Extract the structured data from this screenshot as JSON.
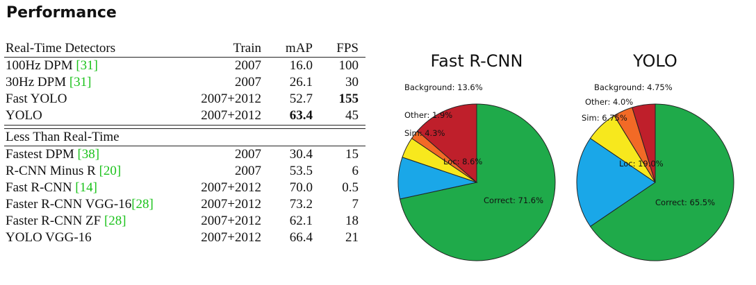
{
  "page": {
    "title": "Performance"
  },
  "table": {
    "headers": {
      "name": "Real-Time Detectors",
      "train": "Train",
      "map": "mAP",
      "fps": "FPS"
    },
    "section_2_title": "Less Than Real-Time",
    "colors": {
      "ref": "#1bc21b"
    },
    "real_time": [
      {
        "name": "100Hz DPM ",
        "ref": "[31]",
        "train": "2007",
        "map": "16.0",
        "fps": "100"
      },
      {
        "name": "30Hz DPM ",
        "ref": "[31]",
        "train": "2007",
        "map": "26.1",
        "fps": "30"
      },
      {
        "name": "Fast YOLO",
        "ref": "",
        "train": "2007+2012",
        "map": "52.7",
        "fps": "155",
        "fps_bold": true
      },
      {
        "name": "YOLO",
        "ref": "",
        "train": "2007+2012",
        "map": "63.4",
        "fps": "45",
        "map_bold": true
      }
    ],
    "less_than_real_time": [
      {
        "name": "Fastest DPM ",
        "ref": "[38]",
        "train": "2007",
        "map": "30.4",
        "fps": "15"
      },
      {
        "name": "R-CNN Minus R ",
        "ref": "[20]",
        "train": "2007",
        "map": "53.5",
        "fps": "6"
      },
      {
        "name": "Fast R-CNN ",
        "ref": "[14]",
        "train": "2007+2012",
        "map": "70.0",
        "fps": "0.5"
      },
      {
        "name": "Faster R-CNN VGG-16",
        "ref": "[28]",
        "train": "2007+2012",
        "map": "73.2",
        "fps": "7"
      },
      {
        "name": "Faster R-CNN ZF ",
        "ref": "[28]",
        "train": "2007+2012",
        "map": "62.1",
        "fps": "18"
      },
      {
        "name": "YOLO VGG-16",
        "ref": "",
        "train": "2007+2012",
        "map": "66.4",
        "fps": "21"
      }
    ]
  },
  "chart_data": [
    {
      "type": "pie",
      "title": "Fast R-CNN",
      "slices": [
        {
          "label": "Correct: 71.6%",
          "value": 71.6,
          "color": "#1faa4a"
        },
        {
          "label": "Loc: 8.6%",
          "value": 8.6,
          "color": "#1aa7e8"
        },
        {
          "label": "Sim: 4.3%",
          "value": 4.3,
          "color": "#f7e81d"
        },
        {
          "label": "Other: 1.9%",
          "value": 1.9,
          "color": "#f26a26"
        },
        {
          "label": "Background: 13.6%",
          "value": 13.6,
          "color": "#bf1f2b"
        }
      ]
    },
    {
      "type": "pie",
      "title": "YOLO",
      "slices": [
        {
          "label": "Correct: 65.5%",
          "value": 65.5,
          "color": "#1faa4a"
        },
        {
          "label": "Loc: 19.0%",
          "value": 19.0,
          "color": "#1aa7e8"
        },
        {
          "label": "Sim: 6.75%",
          "value": 6.75,
          "color": "#f7e81d"
        },
        {
          "label": "Other: 4.0%",
          "value": 4.0,
          "color": "#f26a26"
        },
        {
          "label": "Background: 4.75%",
          "value": 4.75,
          "color": "#bf1f2b"
        }
      ]
    }
  ]
}
